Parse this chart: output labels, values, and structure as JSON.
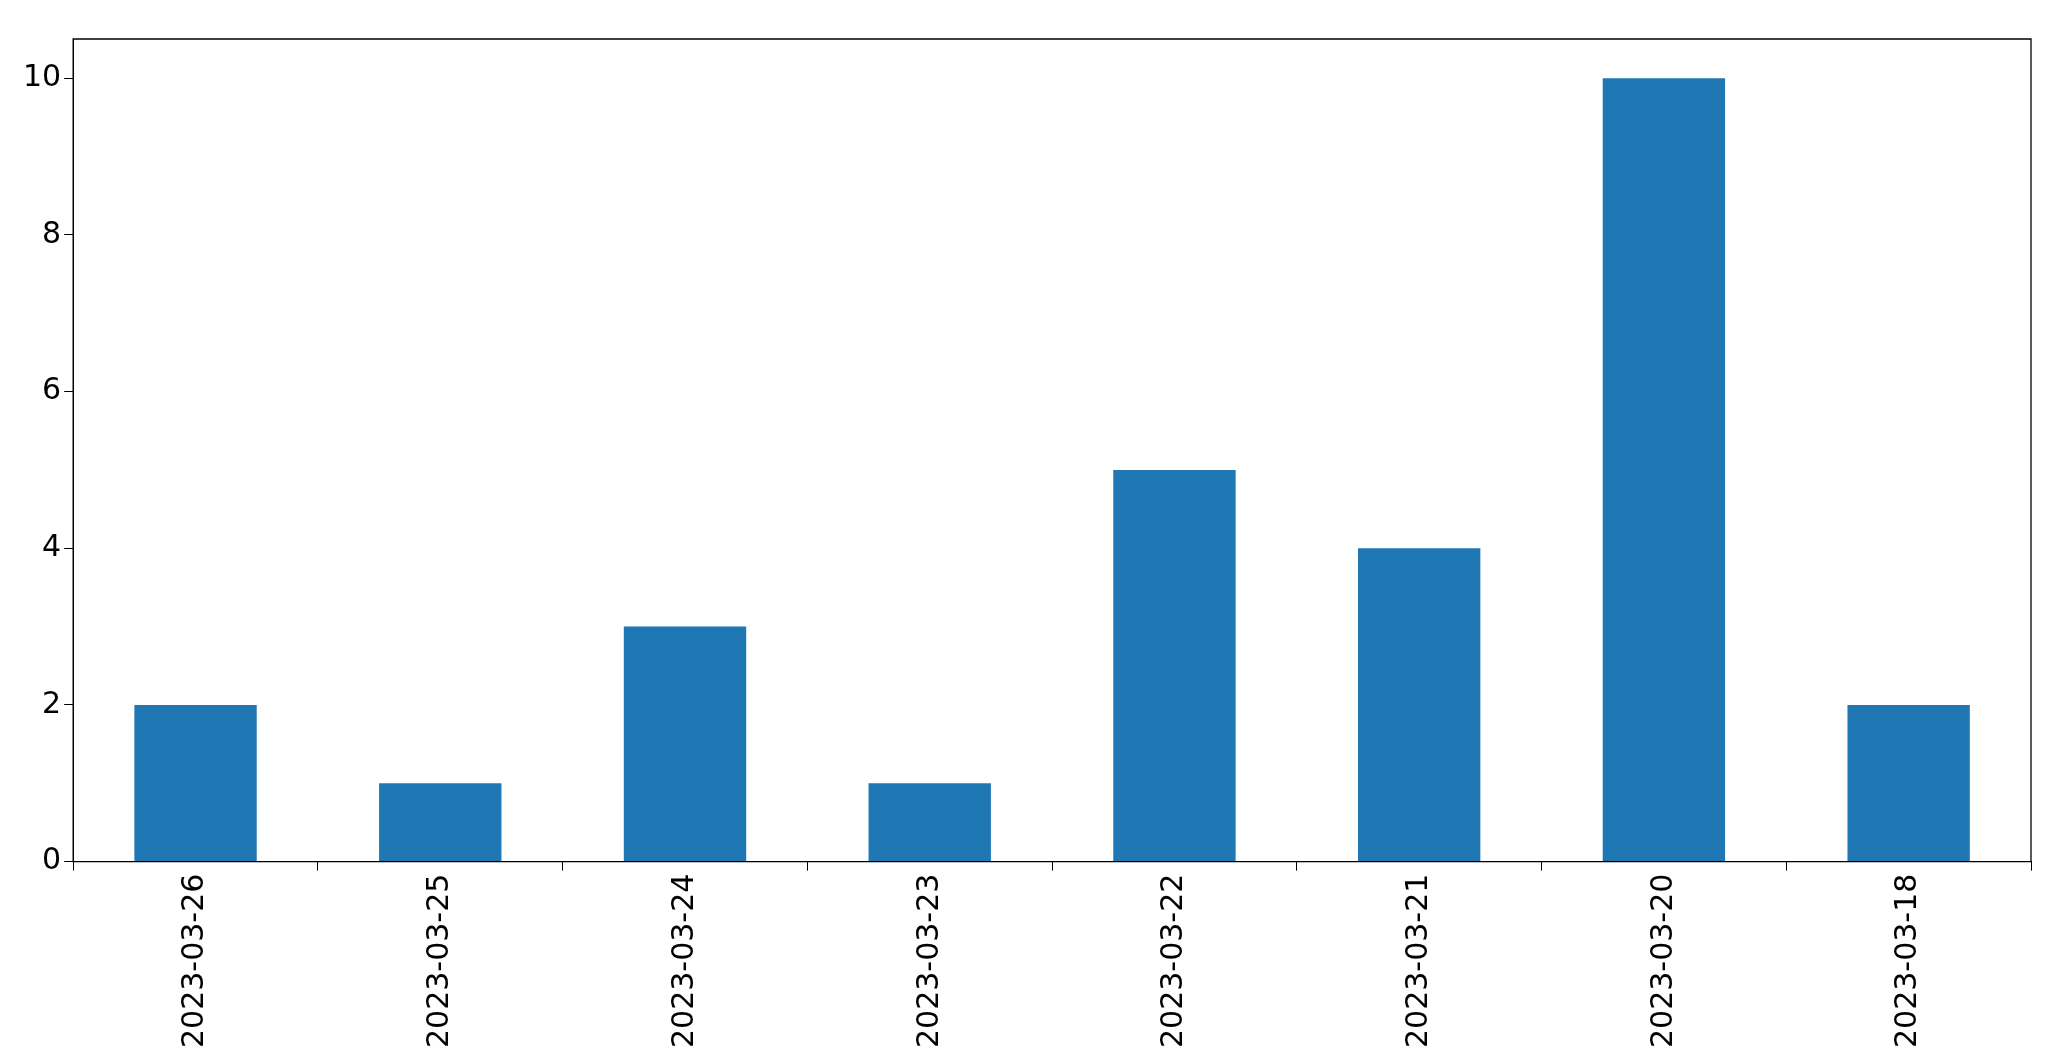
{
  "chart_data": {
    "type": "bar",
    "categories": [
      "2023-03-26",
      "2023-03-25",
      "2023-03-24",
      "2023-03-23",
      "2023-03-22",
      "2023-03-21",
      "2023-03-20",
      "2023-03-18"
    ],
    "values": [
      2,
      1,
      3,
      1,
      5,
      4,
      10,
      2
    ],
    "color": "#1f77b4",
    "ylim": [
      0,
      10.5
    ],
    "yticks": [
      0,
      2,
      4,
      6,
      8,
      10
    ],
    "grid": false,
    "legend": false
  }
}
